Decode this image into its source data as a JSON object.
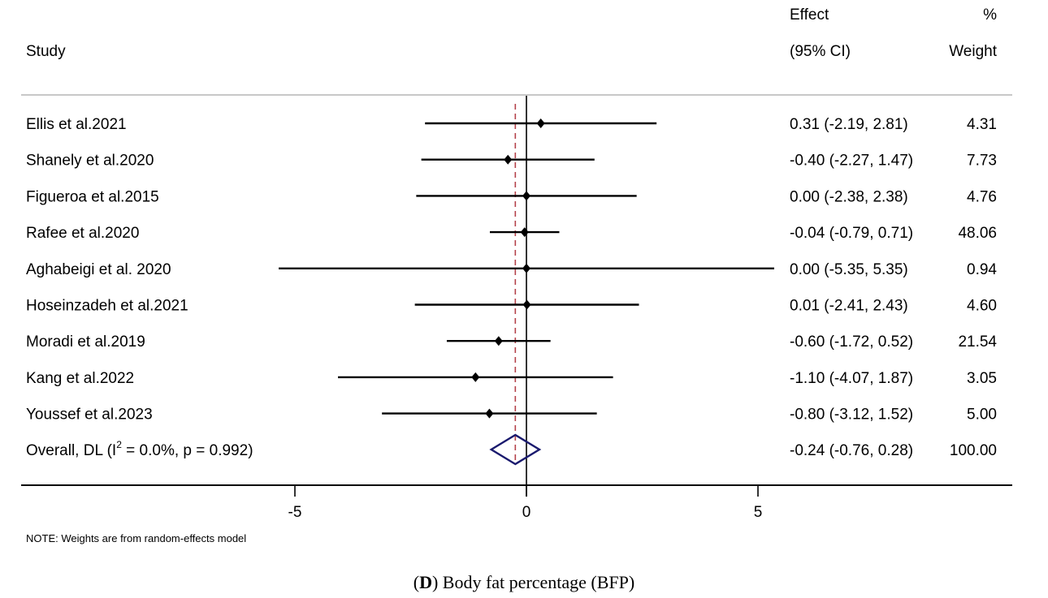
{
  "chart_data": {
    "type": "forest",
    "title": "",
    "caption": {
      "panel": "D",
      "text": "Body fat percentage (BFP)"
    },
    "headers": {
      "study": "Study",
      "effect_line1": "Effect",
      "effect_line2": "(95% CI)",
      "weight_line1": "%",
      "weight_line2": "Weight"
    },
    "xlabel": "",
    "xlim": [
      -5.35,
      5.35
    ],
    "xticks": [
      -5,
      0,
      5
    ],
    "xtick_labels": [
      "-5",
      "0",
      "5"
    ],
    "null_line": 0,
    "overall_line": -0.24,
    "studies": [
      {
        "name": "Ellis et al.2021",
        "effect": 0.31,
        "lower": -2.19,
        "upper": 2.81,
        "ci_text": "0.31 (-2.19, 2.81)",
        "weight": "4.31"
      },
      {
        "name": "Shanely et al.2020",
        "effect": -0.4,
        "lower": -2.27,
        "upper": 1.47,
        "ci_text": "-0.40 (-2.27, 1.47)",
        "weight": "7.73"
      },
      {
        "name": "Figueroa et al.2015",
        "effect": 0.0,
        "lower": -2.38,
        "upper": 2.38,
        "ci_text": "0.00 (-2.38, 2.38)",
        "weight": "4.76"
      },
      {
        "name": "Rafee et al.2020",
        "effect": -0.04,
        "lower": -0.79,
        "upper": 0.71,
        "ci_text": "-0.04 (-0.79, 0.71)",
        "weight": "48.06"
      },
      {
        "name": "Aghabeigi et al. 2020",
        "effect": 0.0,
        "lower": -5.35,
        "upper": 5.35,
        "ci_text": "0.00 (-5.35, 5.35)",
        "weight": "0.94"
      },
      {
        "name": "Hoseinzadeh et al.2021",
        "effect": 0.01,
        "lower": -2.41,
        "upper": 2.43,
        "ci_text": "0.01 (-2.41, 2.43)",
        "weight": "4.60"
      },
      {
        "name": "Moradi et al.2019",
        "effect": -0.6,
        "lower": -1.72,
        "upper": 0.52,
        "ci_text": "-0.60 (-1.72, 0.52)",
        "weight": "21.54"
      },
      {
        "name": "Kang et al.2022",
        "effect": -1.1,
        "lower": -4.07,
        "upper": 1.87,
        "ci_text": "-1.10 (-4.07, 1.87)",
        "weight": "3.05"
      },
      {
        "name": "Youssef et al.2023",
        "effect": -0.8,
        "lower": -3.12,
        "upper": 1.52,
        "ci_text": "-0.80 (-3.12, 1.52)",
        "weight": "5.00"
      }
    ],
    "overall": {
      "label_prefix": "Overall, DL (I",
      "label_sup": "2",
      "label_suffix": " = 0.0%, p = 0.992)",
      "effect": -0.24,
      "lower": -0.76,
      "upper": 0.28,
      "ci_text": "-0.24 (-0.76, 0.28)",
      "weight": "100.00"
    },
    "note": "NOTE: Weights are from random-effects model",
    "colors": {
      "ci_line": "#000000",
      "point": "#000000",
      "overall_diamond": "#1a1a6e",
      "overall_line": "#b5444c",
      "header_rule": "#c8c8c8"
    }
  }
}
